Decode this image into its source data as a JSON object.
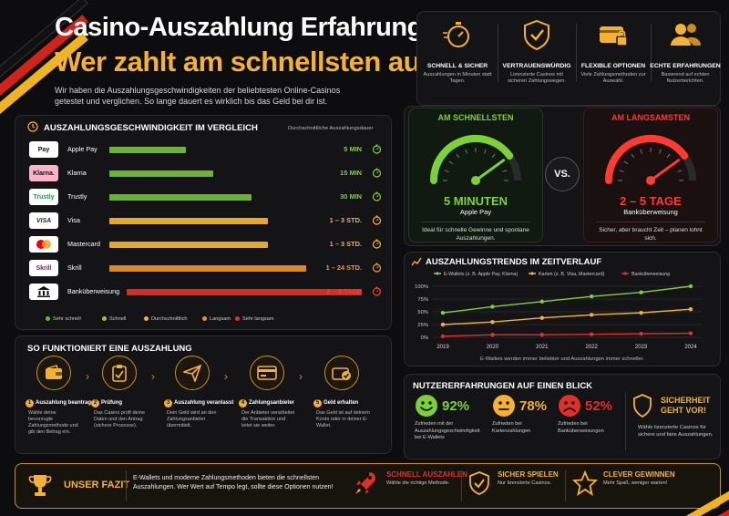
{
  "header": {
    "title_line1": "Casino-Auszahlung Erfahrungen:",
    "title_line2": "Wer zahlt am schnellsten aus?",
    "subtitle": "Wir haben die Auszahlungsgeschwindigkeiten der beliebtesten Online-Casinos getestet und verglichen. So lange dauert es wirklich bis das Geld bei dir ist."
  },
  "features": [
    {
      "icon": "stopwatch-icon",
      "title": "SCHNELL & SICHER",
      "text": "Auszahlungen in Minuten statt Tagen."
    },
    {
      "icon": "shield-check-icon",
      "title": "VERTRAUENSWÜRDIG",
      "text": "Lizenzierte Casinos mit sicheren Zahlungswegen."
    },
    {
      "icon": "wallet-lock-icon",
      "title": "FLEXIBLE OPTIONEN",
      "text": "Viele Zahlungsmethoden zur Auswahl."
    },
    {
      "icon": "users-icon",
      "title": "ECHTE ERFAHRUNGEN",
      "text": "Basierend auf echten Nutzerberichten."
    }
  ],
  "comparison": {
    "title": "AUSZAHLUNGSGESCHWINDIGKEIT IM VERGLEICH",
    "caption": "Durchschnittliche Auszahlungsdauer",
    "rows": [
      {
        "name": "Apple Pay",
        "logo": "Pay",
        "value": "5 MIN",
        "fill": 0.28,
        "color": "#6ab42f",
        "text_color": "#7ed03a"
      },
      {
        "name": "Klarna",
        "logo": "Klarna.",
        "value": "15 MIN",
        "fill": 0.38,
        "color": "#6ab42f",
        "text_color": "#7ed03a"
      },
      {
        "name": "Trustly",
        "logo": "Trustly",
        "value": "30 MIN",
        "fill": 0.52,
        "color": "#6ab42f",
        "text_color": "#7ed03a"
      },
      {
        "name": "Visa",
        "logo": "VISA",
        "value": "1 – 3 STD.",
        "fill": 0.58,
        "color": "#e6a82a",
        "text_color": "#f3b234"
      },
      {
        "name": "Mastercard",
        "logo": "",
        "value": "1 – 3 STD.",
        "fill": 0.58,
        "color": "#e6a82a",
        "text_color": "#f3b234"
      },
      {
        "name": "Skrill",
        "logo": "Skrill",
        "value": "1 – 24 STD.",
        "fill": 0.72,
        "color": "#e2862a",
        "text_color": "#f39a32"
      },
      {
        "name": "Banküberweisung",
        "logo": "",
        "value": "2 – 5 TAGE",
        "fill": 0.86,
        "color": "#d62c24",
        "text_color": "#ff3a30"
      }
    ],
    "legend": [
      {
        "label": "Sehr schnell",
        "color": "#5fbf2e"
      },
      {
        "label": "Schnell",
        "color": "#8ccd3c"
      },
      {
        "label": "Durchschnittlich",
        "color": "#f3b234"
      },
      {
        "label": "Langsam",
        "color": "#f08a2a"
      },
      {
        "label": "Sehr langsam",
        "color": "#e0302a"
      }
    ]
  },
  "steps": {
    "title": "SO FUNKTIONIERT EINE AUSZAHLUNG",
    "items": [
      {
        "num": "1",
        "title": "Auszahlung beantragen",
        "text": "Wähle deine bevorzugte Zahlungsmethode und gib den Betrag ein.",
        "icon": "wallet-icon"
      },
      {
        "num": "2",
        "title": "Prüfung",
        "text": "Das Casino prüft deine Daten und den Antrag (sichere Prozesse).",
        "icon": "clipboard-check-icon"
      },
      {
        "num": "3",
        "title": "Auszahlung veranlasst",
        "text": "Dein Geld wird an den Zahlungsanbieter übermittelt.",
        "icon": "send-icon"
      },
      {
        "num": "4",
        "title": "Zahlungsanbieter",
        "text": "Der Anbieter verarbeitet die Transaktion und leitet sie weiter.",
        "icon": "card-icon"
      },
      {
        "num": "5",
        "title": "Geld erhalten",
        "text": "Das Geld ist auf deinem Konto oder in deiner E-Wallet.",
        "icon": "wallet-check-icon"
      }
    ]
  },
  "gauges": {
    "fast": {
      "head": "AM SCHNELLSTEN",
      "value": "5 MINUTEN",
      "method": "Apple Pay",
      "note": "Ideal für schnelle Gewinne und spontane Auszahlungen.",
      "level": 0.8
    },
    "vs": "VS.",
    "slow": {
      "head": "AM LANGSAMSTEN",
      "value": "2 – 5 TAGE",
      "method": "Banküberweisung",
      "note": "Sicher, aber braucht Zeit – planen lohnt sich.",
      "level": 0.8
    }
  },
  "chart_data": {
    "type": "line",
    "title": "AUSZAHLUNGSTRENDS IM ZEITVERLAUF",
    "caption": "E-Wallets werden immer beliebter und Auszahlungen immer schneller.",
    "x": [
      "2019",
      "2020",
      "2021",
      "2022",
      "2023",
      "2024"
    ],
    "ylim": [
      0,
      100
    ],
    "yticks": [
      "0%",
      "25%",
      "50%",
      "75%",
      "100%"
    ],
    "series": [
      {
        "name": "E-Wallets (z. B. Apple Pay, Klarna)",
        "color": "#7ed03a",
        "values": [
          48,
          60,
          70,
          80,
          88,
          100
        ]
      },
      {
        "name": "Karten (z. B. Visa, Mastercard)",
        "color": "#f3b234",
        "values": [
          25,
          30,
          38,
          44,
          48,
          55
        ]
      },
      {
        "name": "Banküberweisung",
        "color": "#e0302a",
        "values": [
          2,
          5,
          5,
          6,
          7,
          8
        ]
      }
    ],
    "legend_position": "top",
    "grid": true
  },
  "experiences": {
    "title": "NUTZERERFAHRUNGEN AUF EINEN BLICK",
    "items": [
      {
        "pct": "92%",
        "text": "Zufrieden mit der Auszahlungsgeschwindigkeit bei E-Wallets",
        "color": "#7ed03a",
        "icon": "happy-face-icon"
      },
      {
        "pct": "78%",
        "text": "Zufrieden bei Kartenzahlungen",
        "color": "#f3b234",
        "icon": "neutral-face-icon"
      },
      {
        "pct": "52%",
        "text": "Zufrieden bei Banküberweisungen",
        "color": "#e0302a",
        "icon": "sad-face-icon"
      }
    ],
    "security": {
      "title": "SICHERHEIT GEHT VOR!",
      "text": "Wähle lizenzierte Casinos für sichere und faire Auszahlungen."
    }
  },
  "footer": {
    "label": "UNSER FAZIT",
    "text": "E-Wallets und moderne Zahlungsmethoden bieten die schnellsten Auszahlungen. Wer Wert auf Tempo legt, sollte diese Optionen nutzen!",
    "items": [
      {
        "title": "SCHNELL AUSZAHLEN",
        "text": "Wähle die richtige Methode.",
        "color": "#e0302a"
      },
      {
        "title": "SICHER SPIELEN",
        "text": "Nur lizenzierte Casinos.",
        "color": "#f3b234"
      },
      {
        "title": "CLEVER GEWINNEN",
        "text": "Mehr Spaß, weniger warten!",
        "color": "#f3b234"
      }
    ]
  }
}
